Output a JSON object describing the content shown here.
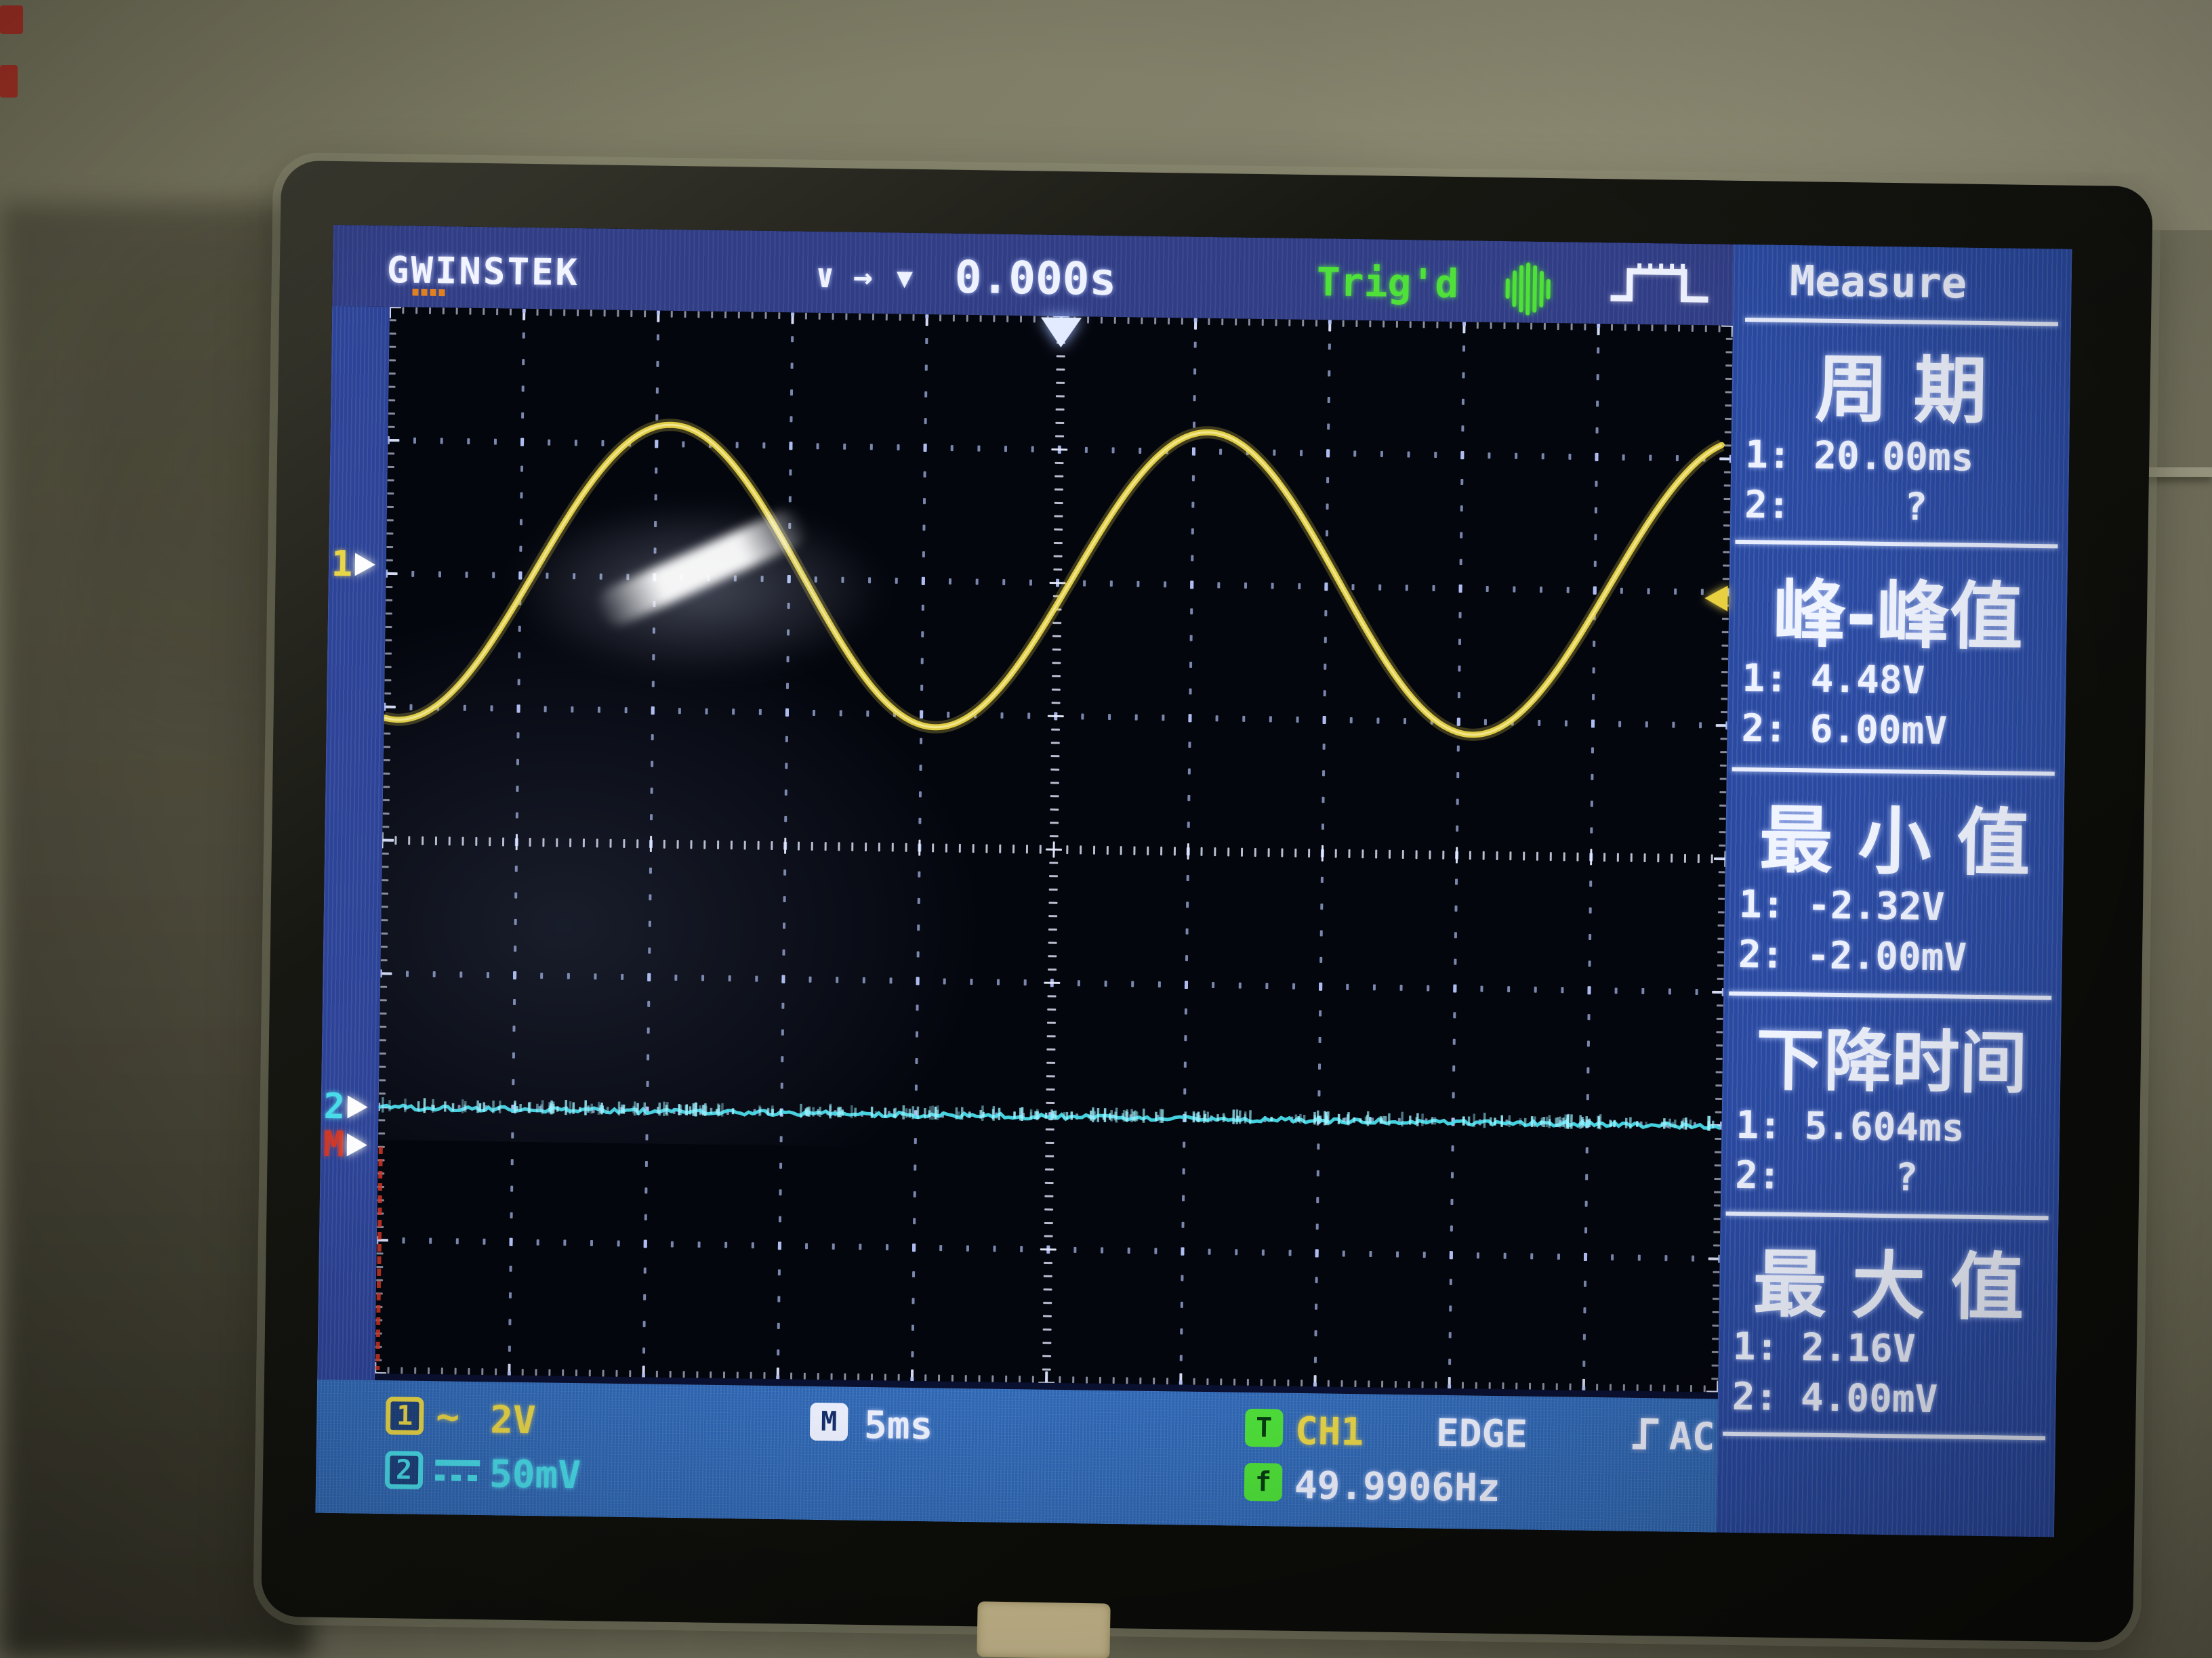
{
  "device": {
    "brand_logo": "GW INSTEK",
    "logo_g": "G",
    "logo_w": "W",
    "logo_rest": "INSTEK"
  },
  "top_bar": {
    "h_position_icons": {
      "icon1": "∨",
      "icon2": "→",
      "icon3": "▼"
    },
    "trigger_time": "0.000s",
    "trigger_status": "Trig'd"
  },
  "measure": {
    "title": "Measure",
    "sections": [
      {
        "name": "周 期",
        "line1": "1: 20.00ms",
        "line2": "2:     ?"
      },
      {
        "name": "峰-峰值",
        "line1": "1: 4.48V",
        "line2": "2: 6.00mV"
      },
      {
        "name": "最 小 值",
        "line1": "1: -2.32V",
        "line2": "2: -2.00mV"
      },
      {
        "name": "下降时间",
        "line1": "1: 5.604ms",
        "line2": "2:     ?"
      },
      {
        "name": "最 大 值",
        "line1": "1: 2.16V",
        "line2": "2: 4.00mV"
      }
    ]
  },
  "bottom_bar": {
    "ch1": {
      "label": "1",
      "coupling": "~",
      "scale": "2V"
    },
    "ch2": {
      "label": "2",
      "coupling": "DC",
      "scale": "50mV"
    },
    "timebase": {
      "label": "M",
      "value": "5ms"
    },
    "trigger": {
      "label": "T",
      "source": "CH1",
      "type": "EDGE",
      "coupling": "AC"
    },
    "frequency": {
      "label": "f",
      "value": "49.9906Hz"
    }
  },
  "markers": {
    "ch1": "1",
    "ch2": "2",
    "math": "M"
  },
  "colors": {
    "ch1_yellow": "#e8d548",
    "ch2_cyan": "#49dbe9",
    "trig_green": "#4fe03a",
    "math_red": "#d23826",
    "text_white": "#eef2ff",
    "topbar_blue": "#313e86",
    "panel_blue": "#2a4aa2",
    "bottombar_blue": "#2d66b4"
  },
  "chart_data": {
    "type": "line",
    "title": "Oscilloscope graticule",
    "grid": {
      "cols": 10,
      "rows": 8,
      "style": "dotted"
    },
    "timebase_ms_per_div": 5,
    "trigger": {
      "time": "0.000s",
      "source": "CH1",
      "type": "EDGE",
      "coupling": "AC",
      "frequency_hz": 49.9906,
      "status": "Trig'd"
    },
    "series": [
      {
        "name": "CH1",
        "shape": "sine",
        "color": "#e8d548",
        "volts_per_div": 2,
        "period_ms": 20.0,
        "vpp_v": 4.48,
        "vmax_v": 2.16,
        "vmin_v": -2.32,
        "fall_time_ms": 5.604,
        "zero_divs_above_center": 2.06,
        "cycles_visible": 2.5
      },
      {
        "name": "CH2",
        "shape": "flat-noise",
        "color": "#49dbe9",
        "volts_per_div": 0.05,
        "period": "?",
        "vpp_mv": 6.0,
        "vmax_mv": 4.0,
        "vmin_mv": -2.0,
        "fall_time": "?",
        "zero_divs_above_center": -2.0
      }
    ]
  }
}
